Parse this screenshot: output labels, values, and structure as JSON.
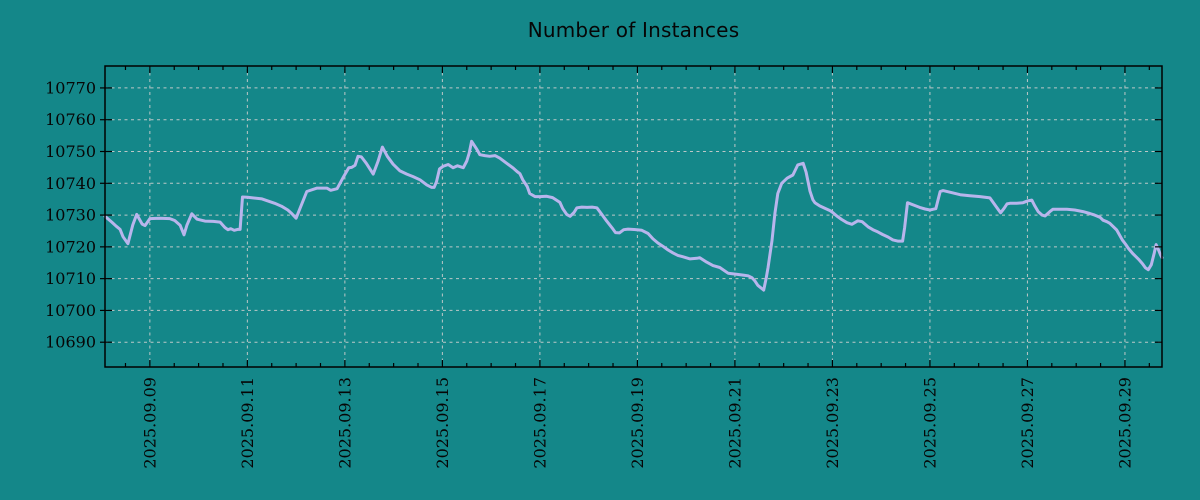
{
  "colors": {
    "background": "#148789",
    "line": "#b8b5ec",
    "grid": "#c6cbcb",
    "axis": "#000000",
    "text": "#060606"
  },
  "chart_data": {
    "type": "line",
    "title": "Number of Instances",
    "xlabel": "",
    "ylabel": "",
    "grid": true,
    "legend": "none",
    "x_axis": {
      "tick_days": [
        9,
        11,
        13,
        15,
        17,
        19,
        21,
        23,
        25,
        27,
        29
      ],
      "tick_labels": [
        "2025.09.09",
        "2025.09.11",
        "2025.09.13",
        "2025.09.15",
        "2025.09.17",
        "2025.09.19",
        "2025.09.21",
        "2025.09.23",
        "2025.09.25",
        "2025.09.27",
        "2025.09.29"
      ],
      "minor_step_days": 0.5,
      "range_days": [
        8.08,
        29.76
      ]
    },
    "y_axis": {
      "ticks": [
        10690,
        10700,
        10710,
        10720,
        10730,
        10740,
        10750,
        10760,
        10770
      ],
      "range": [
        10682.2,
        10776.9
      ]
    },
    "series": [
      {
        "name": "Number of Instances",
        "color": "#b8b5ec",
        "points": [
          [
            8.08,
            10729.6
          ],
          [
            8.22,
            10727.8
          ],
          [
            8.31,
            10726.5
          ],
          [
            8.39,
            10725.5
          ],
          [
            8.45,
            10723.2
          ],
          [
            8.55,
            10721.0
          ],
          [
            8.65,
            10726.9
          ],
          [
            8.73,
            10730.2
          ],
          [
            8.84,
            10727.2
          ],
          [
            8.9,
            10726.7
          ],
          [
            9.0,
            10728.9
          ],
          [
            9.2,
            10729.0
          ],
          [
            9.41,
            10728.9
          ],
          [
            9.51,
            10728.3
          ],
          [
            9.62,
            10726.8
          ],
          [
            9.7,
            10723.8
          ],
          [
            9.76,
            10726.8
          ],
          [
            9.86,
            10730.4
          ],
          [
            9.97,
            10728.7
          ],
          [
            10.13,
            10728.1
          ],
          [
            10.3,
            10728.0
          ],
          [
            10.44,
            10727.8
          ],
          [
            10.54,
            10726.1
          ],
          [
            10.6,
            10725.4
          ],
          [
            10.66,
            10725.7
          ],
          [
            10.73,
            10725.2
          ],
          [
            10.8,
            10725.5
          ],
          [
            10.85,
            10725.5
          ],
          [
            10.9,
            10735.7
          ],
          [
            11.0,
            10735.6
          ],
          [
            11.3,
            10735.1
          ],
          [
            11.56,
            10733.7
          ],
          [
            11.7,
            10732.8
          ],
          [
            11.83,
            10731.6
          ],
          [
            11.91,
            10730.5
          ],
          [
            12.0,
            10729.0
          ],
          [
            12.08,
            10732.1
          ],
          [
            12.22,
            10737.4
          ],
          [
            12.43,
            10738.5
          ],
          [
            12.63,
            10738.5
          ],
          [
            12.71,
            10737.8
          ],
          [
            12.84,
            10738.3
          ],
          [
            12.96,
            10741.7
          ],
          [
            13.08,
            10744.9
          ],
          [
            13.14,
            10745.0
          ],
          [
            13.21,
            10745.7
          ],
          [
            13.27,
            10748.5
          ],
          [
            13.34,
            10748.3
          ],
          [
            13.44,
            10746.3
          ],
          [
            13.58,
            10742.9
          ],
          [
            13.68,
            10746.9
          ],
          [
            13.77,
            10751.4
          ],
          [
            13.87,
            10748.5
          ],
          [
            13.99,
            10746.0
          ],
          [
            14.13,
            10743.9
          ],
          [
            14.27,
            10742.9
          ],
          [
            14.4,
            10742.1
          ],
          [
            14.54,
            10741.1
          ],
          [
            14.68,
            10739.5
          ],
          [
            14.78,
            10738.7
          ],
          [
            14.83,
            10738.7
          ],
          [
            14.88,
            10740.5
          ],
          [
            14.94,
            10744.5
          ],
          [
            15.01,
            10745.3
          ],
          [
            15.12,
            10745.9
          ],
          [
            15.22,
            10744.9
          ],
          [
            15.31,
            10745.5
          ],
          [
            15.43,
            10744.9
          ],
          [
            15.5,
            10747.0
          ],
          [
            15.55,
            10749.5
          ],
          [
            15.6,
            10753.2
          ],
          [
            15.71,
            10750.6
          ],
          [
            15.77,
            10749.0
          ],
          [
            15.87,
            10748.7
          ],
          [
            15.97,
            10748.5
          ],
          [
            16.08,
            10748.7
          ],
          [
            16.18,
            10747.9
          ],
          [
            16.32,
            10746.3
          ],
          [
            16.45,
            10744.8
          ],
          [
            16.53,
            10743.7
          ],
          [
            16.59,
            10743.0
          ],
          [
            16.65,
            10741.1
          ],
          [
            16.74,
            10739.0
          ],
          [
            16.79,
            10736.8
          ],
          [
            16.9,
            10735.8
          ],
          [
            17.0,
            10735.8
          ],
          [
            17.14,
            10735.9
          ],
          [
            17.26,
            10735.5
          ],
          [
            17.41,
            10734.0
          ],
          [
            17.47,
            10732.0
          ],
          [
            17.55,
            10730.2
          ],
          [
            17.62,
            10729.6
          ],
          [
            17.7,
            10730.8
          ],
          [
            17.76,
            10732.3
          ],
          [
            17.86,
            10732.5
          ],
          [
            17.97,
            10732.4
          ],
          [
            18.07,
            10732.5
          ],
          [
            18.17,
            10732.3
          ],
          [
            18.27,
            10730.2
          ],
          [
            18.37,
            10728.1
          ],
          [
            18.48,
            10726.0
          ],
          [
            18.55,
            10724.5
          ],
          [
            18.63,
            10724.4
          ],
          [
            18.72,
            10725.4
          ],
          [
            18.81,
            10725.6
          ],
          [
            18.99,
            10725.4
          ],
          [
            19.09,
            10725.2
          ],
          [
            19.22,
            10724.2
          ],
          [
            19.32,
            10722.5
          ],
          [
            19.42,
            10721.2
          ],
          [
            19.52,
            10720.2
          ],
          [
            19.63,
            10719.0
          ],
          [
            19.73,
            10718.1
          ],
          [
            19.83,
            10717.3
          ],
          [
            19.93,
            10716.9
          ],
          [
            20.08,
            10716.2
          ],
          [
            20.22,
            10716.4
          ],
          [
            20.28,
            10716.6
          ],
          [
            20.42,
            10715.2
          ],
          [
            20.55,
            10714.1
          ],
          [
            20.69,
            10713.5
          ],
          [
            20.86,
            10711.7
          ],
          [
            21.03,
            10711.4
          ],
          [
            21.17,
            10711.1
          ],
          [
            21.27,
            10710.9
          ],
          [
            21.35,
            10710.3
          ],
          [
            21.41,
            10709.3
          ],
          [
            21.47,
            10707.9
          ],
          [
            21.55,
            10706.9
          ],
          [
            21.59,
            10706.4
          ],
          [
            21.64,
            10710.0
          ],
          [
            21.68,
            10713.6
          ],
          [
            21.76,
            10722.0
          ],
          [
            21.82,
            10730.5
          ],
          [
            21.88,
            10736.8
          ],
          [
            21.96,
            10740.0
          ],
          [
            22.07,
            10741.6
          ],
          [
            22.19,
            10742.6
          ],
          [
            22.29,
            10745.8
          ],
          [
            22.4,
            10746.3
          ],
          [
            22.46,
            10743.5
          ],
          [
            22.54,
            10737.5
          ],
          [
            22.6,
            10734.8
          ],
          [
            22.64,
            10733.9
          ],
          [
            22.74,
            10732.9
          ],
          [
            22.85,
            10732.1
          ],
          [
            22.95,
            10731.4
          ],
          [
            23.0,
            10730.9
          ],
          [
            23.09,
            10729.7
          ],
          [
            23.19,
            10728.6
          ],
          [
            23.3,
            10727.6
          ],
          [
            23.4,
            10727.1
          ],
          [
            23.52,
            10728.2
          ],
          [
            23.61,
            10727.9
          ],
          [
            23.67,
            10727.1
          ],
          [
            23.73,
            10726.3
          ],
          [
            23.83,
            10725.4
          ],
          [
            23.93,
            10724.7
          ],
          [
            24.03,
            10723.9
          ],
          [
            24.14,
            10723.1
          ],
          [
            24.24,
            10722.2
          ],
          [
            24.34,
            10721.8
          ],
          [
            24.44,
            10721.8
          ],
          [
            24.48,
            10726.0
          ],
          [
            24.54,
            10733.9
          ],
          [
            24.69,
            10733.0
          ],
          [
            24.79,
            10732.4
          ],
          [
            24.9,
            10731.9
          ],
          [
            25.0,
            10731.6
          ],
          [
            25.06,
            10731.8
          ],
          [
            25.12,
            10732.0
          ],
          [
            25.17,
            10735.0
          ],
          [
            25.21,
            10737.4
          ],
          [
            25.27,
            10737.7
          ],
          [
            25.41,
            10737.2
          ],
          [
            25.62,
            10736.4
          ],
          [
            25.82,
            10736.1
          ],
          [
            26.03,
            10735.8
          ],
          [
            26.23,
            10735.4
          ],
          [
            26.37,
            10732.4
          ],
          [
            26.45,
            10730.7
          ],
          [
            26.52,
            10732.1
          ],
          [
            26.58,
            10733.5
          ],
          [
            26.64,
            10733.7
          ],
          [
            26.78,
            10733.7
          ],
          [
            26.91,
            10733.9
          ],
          [
            27.01,
            10734.5
          ],
          [
            27.09,
            10734.7
          ],
          [
            27.15,
            10732.9
          ],
          [
            27.22,
            10731.1
          ],
          [
            27.3,
            10730.0
          ],
          [
            27.36,
            10729.7
          ],
          [
            27.46,
            10731.1
          ],
          [
            27.52,
            10731.8
          ],
          [
            27.63,
            10731.8
          ],
          [
            27.81,
            10731.8
          ],
          [
            27.97,
            10731.6
          ],
          [
            28.14,
            10731.1
          ],
          [
            28.28,
            10730.5
          ],
          [
            28.38,
            10730.0
          ],
          [
            28.49,
            10729.3
          ],
          [
            28.55,
            10728.4
          ],
          [
            28.63,
            10727.9
          ],
          [
            28.69,
            10727.4
          ],
          [
            28.75,
            10726.5
          ],
          [
            28.83,
            10725.3
          ],
          [
            28.89,
            10723.7
          ],
          [
            28.95,
            10722.1
          ],
          [
            29.01,
            10720.9
          ],
          [
            29.07,
            10719.5
          ],
          [
            29.16,
            10717.9
          ],
          [
            29.22,
            10717.0
          ],
          [
            29.28,
            10716.1
          ],
          [
            29.36,
            10714.7
          ],
          [
            29.42,
            10713.4
          ],
          [
            29.48,
            10712.8
          ],
          [
            29.54,
            10714.4
          ],
          [
            29.6,
            10718.0
          ],
          [
            29.64,
            10720.7
          ],
          [
            29.68,
            10719.4
          ],
          [
            29.73,
            10717.5
          ],
          [
            29.76,
            10716.6
          ]
        ]
      }
    ]
  }
}
